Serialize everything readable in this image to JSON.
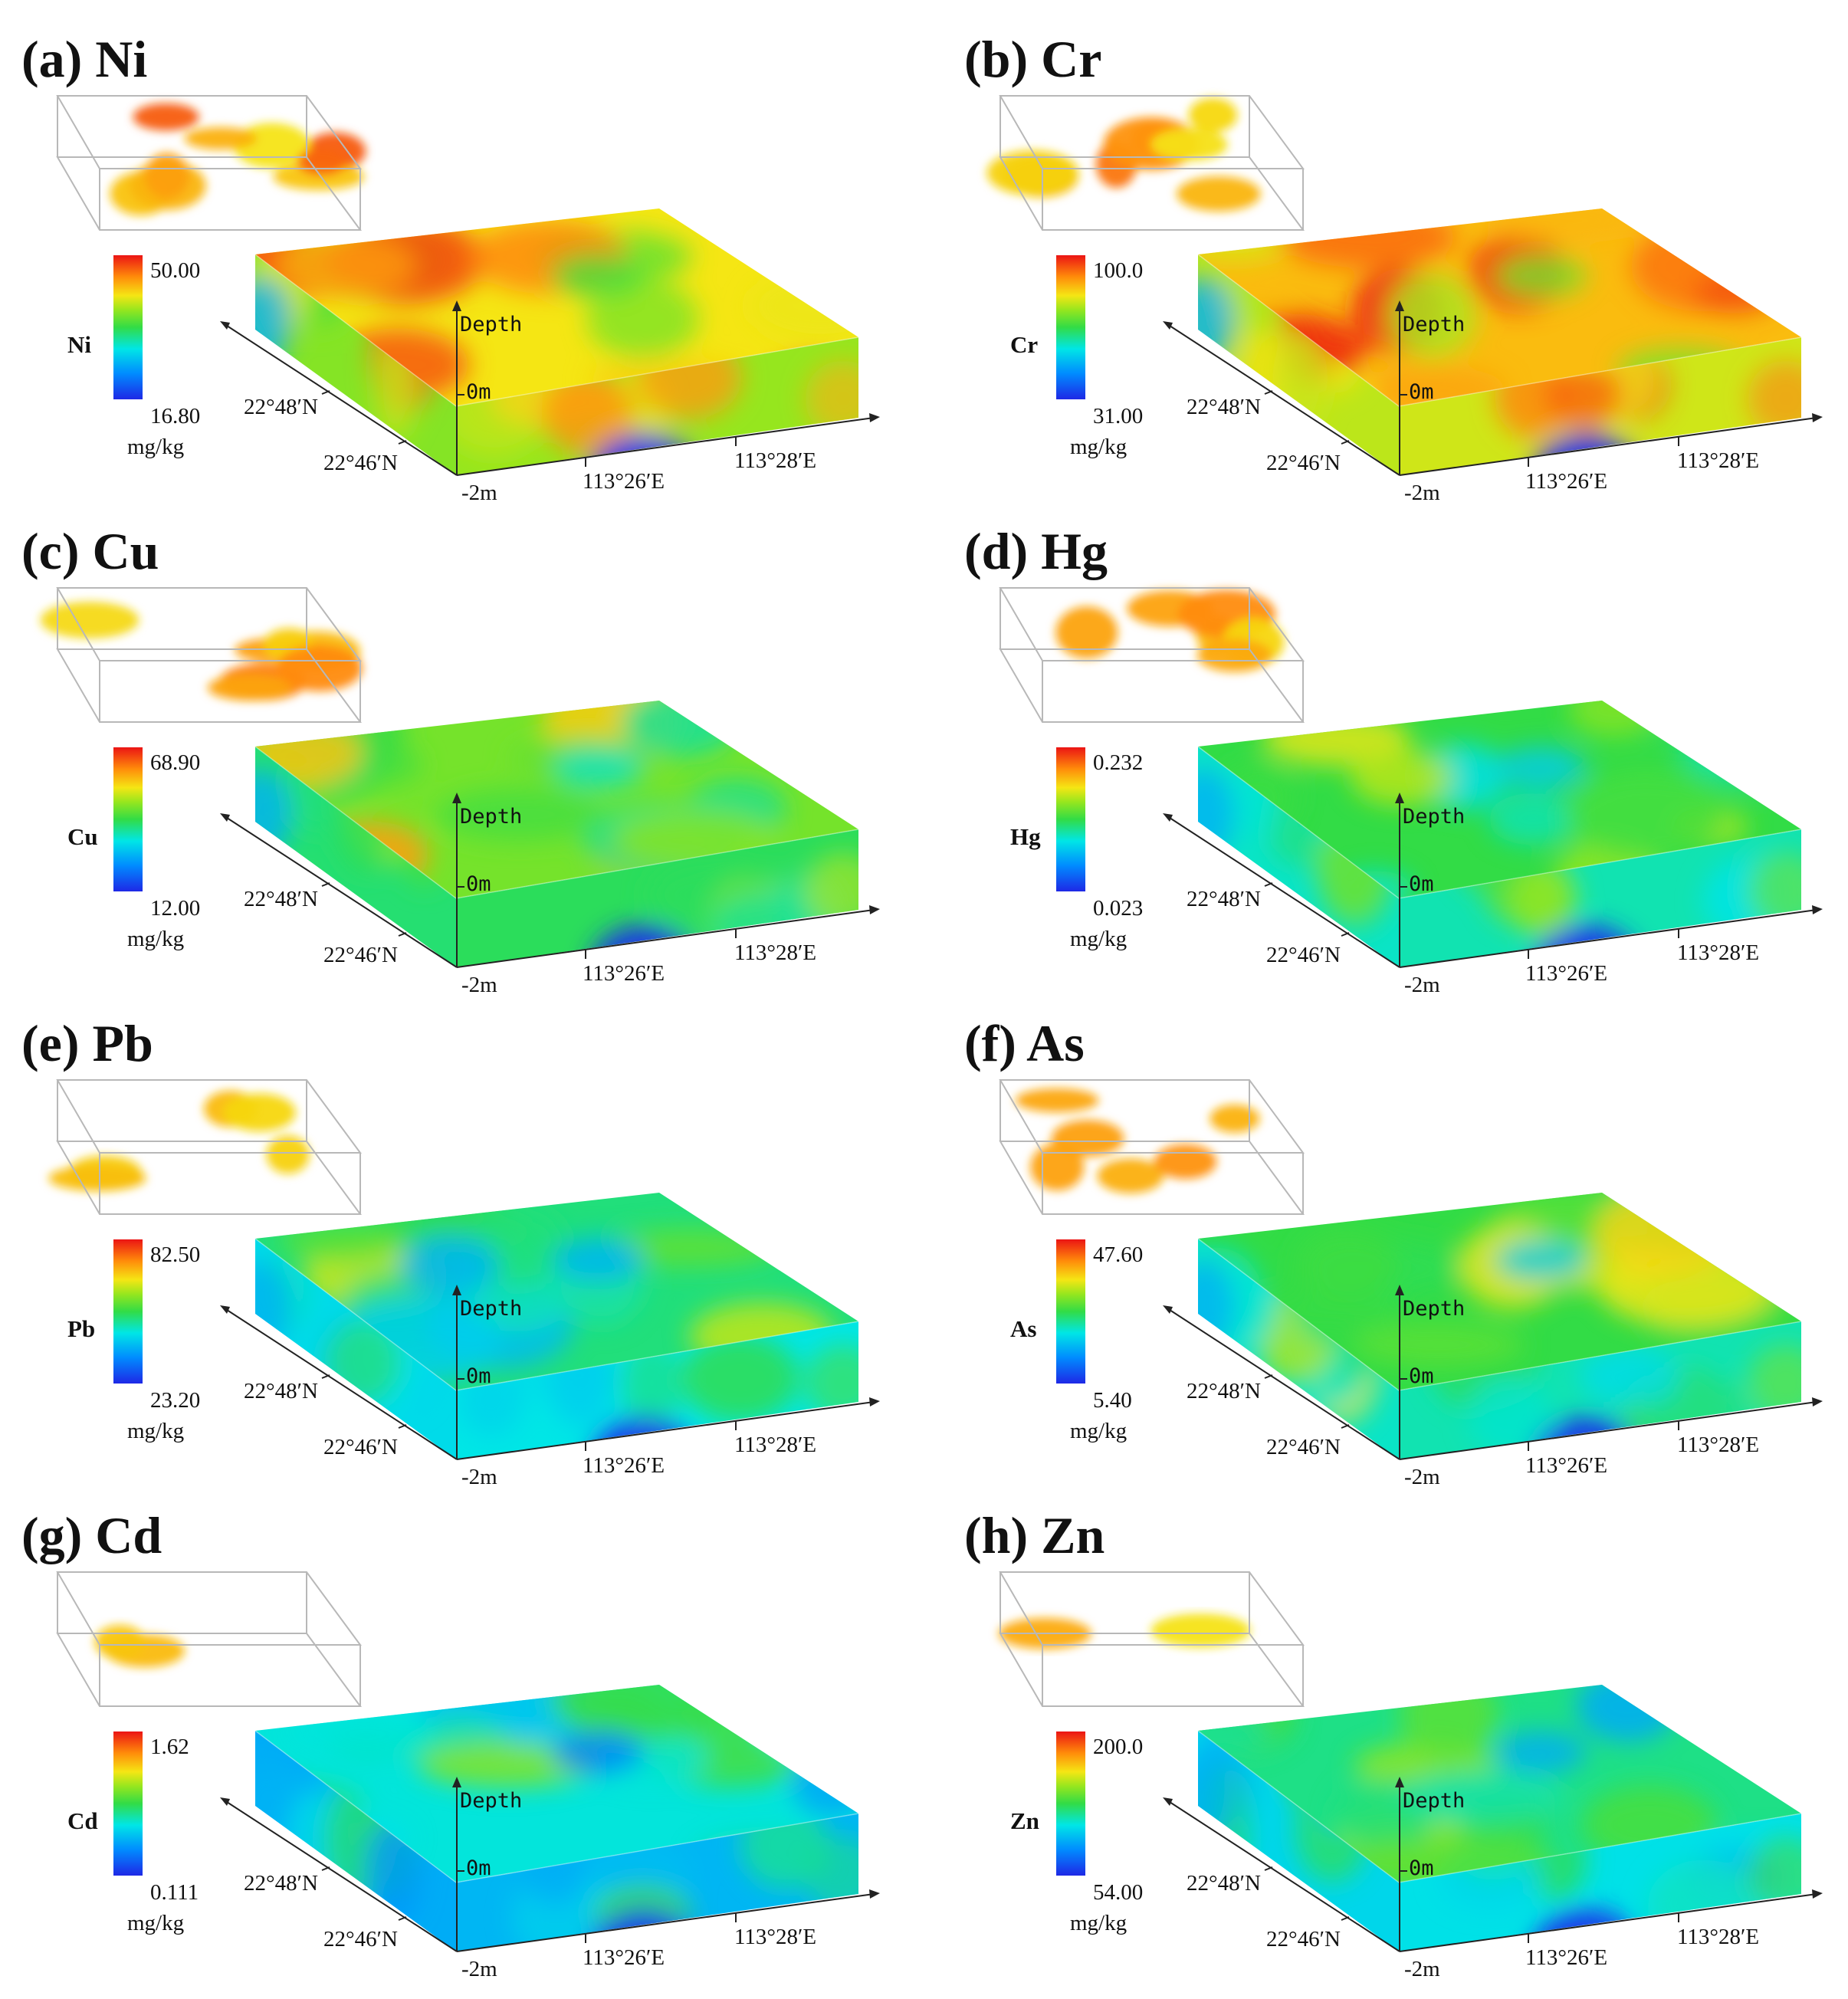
{
  "axis_labels": {
    "depth": "Depth",
    "zero": "0m",
    "bottom": "-2m",
    "lat1": "22°48′N",
    "lat2": "22°46′N",
    "lon1": "113°26′E",
    "lon2": "113°28′E"
  },
  "panels": [
    {
      "title": "(a) Ni",
      "element": "Ni",
      "max": "50.00",
      "min": "16.80",
      "unit": "mg/kg",
      "level": 0.72
    },
    {
      "title": "(b) Cr",
      "element": "Cr",
      "max": "100.0",
      "min": "31.00",
      "unit": "mg/kg",
      "level": 0.78
    },
    {
      "title": "(c) Cu",
      "element": "Cu",
      "max": "68.90",
      "min": "12.00",
      "unit": "mg/kg",
      "level": 0.58
    },
    {
      "title": "(d) Hg",
      "element": "Hg",
      "max": "0.232",
      "min": "0.023",
      "unit": "mg/kg",
      "level": 0.5
    },
    {
      "title": "(e) Pb",
      "element": "Pb",
      "max": "82.50",
      "min": "23.20",
      "unit": "mg/kg",
      "level": 0.45
    },
    {
      "title": "(f) As",
      "element": "As",
      "max": "47.60",
      "min": "5.40",
      "unit": "mg/kg",
      "level": 0.5
    },
    {
      "title": "(g) Cd",
      "element": "Cd",
      "max": "1.62",
      "min": "0.111",
      "unit": "mg/kg",
      "level": 0.36
    },
    {
      "title": "(h) Zn",
      "element": "Zn",
      "max": "200.0",
      "min": "54.00",
      "unit": "mg/kg",
      "level": 0.44
    }
  ]
}
